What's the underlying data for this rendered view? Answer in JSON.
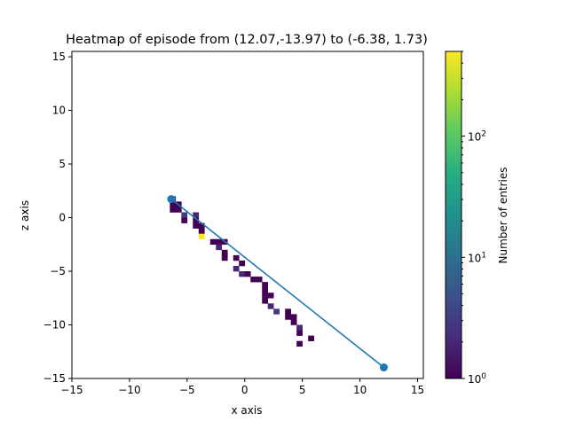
{
  "chart_data": {
    "type": "heatmap",
    "title": "Heatmap of episode from (12.07,-13.97) to (-6.38, 1.73)",
    "xlabel": "x axis",
    "ylabel": "z axis",
    "xlim": [
      -15,
      15.5
    ],
    "ylim": [
      -15,
      15.5
    ],
    "x_ticks": [
      -15,
      -10,
      -5,
      0,
      5,
      10,
      15
    ],
    "y_ticks": [
      -15,
      -10,
      -5,
      0,
      5,
      10,
      15
    ],
    "bin_size": 0.5,
    "colorbar": {
      "label": "Number of entries",
      "scale": "log",
      "range": [
        1,
        500
      ],
      "ticks": [
        1,
        10,
        100
      ],
      "tick_labels": [
        "10^0",
        "10^1",
        "10^2"
      ],
      "colormap": "viridis"
    },
    "cells": [
      {
        "x": -6.5,
        "z": 1.5,
        "count": 2
      },
      {
        "x": -6.5,
        "z": 1.0,
        "count": 1
      },
      {
        "x": -6.5,
        "z": 0.5,
        "count": 1
      },
      {
        "x": -6.0,
        "z": 1.0,
        "count": 1
      },
      {
        "x": -6.0,
        "z": 0.5,
        "count": 1
      },
      {
        "x": -5.5,
        "z": 0.0,
        "count": 3
      },
      {
        "x": -5.5,
        "z": -0.5,
        "count": 1
      },
      {
        "x": -4.5,
        "z": -1.0,
        "count": 1
      },
      {
        "x": -4.5,
        "z": 0.0,
        "count": 2
      },
      {
        "x": -4.5,
        "z": -0.5,
        "count": 1
      },
      {
        "x": -4.0,
        "z": -1.0,
        "count": 1
      },
      {
        "x": -4.0,
        "z": -1.5,
        "count": 1
      },
      {
        "x": -4.0,
        "z": -2.0,
        "count": 450
      },
      {
        "x": -3.0,
        "z": -2.5,
        "count": 1
      },
      {
        "x": -2.5,
        "z": -2.5,
        "count": 1
      },
      {
        "x": -2.5,
        "z": -3.0,
        "count": 2
      },
      {
        "x": -2.0,
        "z": -2.5,
        "count": 1
      },
      {
        "x": -2.0,
        "z": -3.5,
        "count": 1
      },
      {
        "x": -2.0,
        "z": -4.0,
        "count": 1
      },
      {
        "x": -1.0,
        "z": -4.0,
        "count": 1
      },
      {
        "x": -0.5,
        "z": -4.5,
        "count": 1
      },
      {
        "x": -1.0,
        "z": -5.0,
        "count": 2
      },
      {
        "x": -0.5,
        "z": -5.5,
        "count": 2
      },
      {
        "x": 0.0,
        "z": -5.5,
        "count": 1
      },
      {
        "x": 0.5,
        "z": -6.0,
        "count": 1
      },
      {
        "x": 1.0,
        "z": -6.0,
        "count": 1
      },
      {
        "x": 1.5,
        "z": -6.5,
        "count": 1
      },
      {
        "x": 1.5,
        "z": -7.0,
        "count": 1
      },
      {
        "x": 1.5,
        "z": -7.5,
        "count": 1
      },
      {
        "x": 1.5,
        "z": -8.0,
        "count": 1
      },
      {
        "x": 2.0,
        "z": -7.5,
        "count": 1
      },
      {
        "x": 2.0,
        "z": -8.5,
        "count": 2
      },
      {
        "x": 2.5,
        "z": -9.0,
        "count": 3
      },
      {
        "x": 3.5,
        "z": -9.0,
        "count": 1
      },
      {
        "x": 3.5,
        "z": -9.5,
        "count": 1
      },
      {
        "x": 4.0,
        "z": -9.5,
        "count": 1
      },
      {
        "x": 4.0,
        "z": -10.0,
        "count": 1
      },
      {
        "x": 4.5,
        "z": -10.5,
        "count": 2
      },
      {
        "x": 4.5,
        "z": -11.0,
        "count": 1
      },
      {
        "x": 5.5,
        "z": -11.5,
        "count": 1
      },
      {
        "x": 4.5,
        "z": -12.0,
        "count": 1
      }
    ],
    "line": {
      "points": [
        [
          12.07,
          -13.97
        ],
        [
          -6.38,
          1.73
        ]
      ],
      "color": "#1f77b4"
    }
  }
}
